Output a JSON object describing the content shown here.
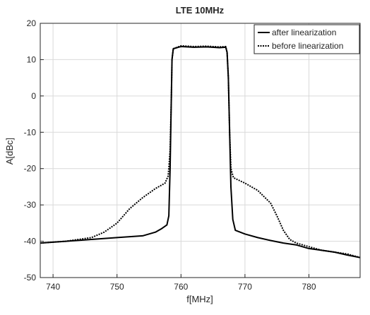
{
  "chart_data": {
    "type": "line",
    "title": "LTE 10MHz",
    "xlabel": "f[MHz]",
    "ylabel": "A[dBc]",
    "xlim": [
      738,
      788
    ],
    "ylim": [
      -50,
      20
    ],
    "xticks": [
      740,
      750,
      760,
      770,
      780
    ],
    "yticks": [
      20,
      10,
      0,
      -10,
      -20,
      -30,
      -40,
      -50
    ],
    "grid": true,
    "legend": {
      "placement": "top-right"
    },
    "series": [
      {
        "name": "after linearization",
        "style": "solid",
        "color": "#000000",
        "points": [
          [
            738,
            -40.5
          ],
          [
            742,
            -40.0
          ],
          [
            746,
            -39.5
          ],
          [
            750,
            -39.0
          ],
          [
            754,
            -38.5
          ],
          [
            756,
            -37.5
          ],
          [
            757,
            -36.5
          ],
          [
            757.8,
            -35.5
          ],
          [
            758.1,
            -33.0
          ],
          [
            758.3,
            -20.0
          ],
          [
            758.5,
            0.0
          ],
          [
            758.6,
            10.0
          ],
          [
            758.8,
            13.0
          ],
          [
            760,
            13.6
          ],
          [
            762,
            13.4
          ],
          [
            764,
            13.5
          ],
          [
            766,
            13.3
          ],
          [
            767,
            13.4
          ],
          [
            767.2,
            12.0
          ],
          [
            767.4,
            5.0
          ],
          [
            767.6,
            -10.0
          ],
          [
            767.8,
            -25.0
          ],
          [
            768.1,
            -34.0
          ],
          [
            768.5,
            -37.0
          ],
          [
            770,
            -38.0
          ],
          [
            772,
            -39.0
          ],
          [
            774,
            -39.8
          ],
          [
            776,
            -40.5
          ],
          [
            778,
            -41.0
          ],
          [
            780,
            -42.0
          ],
          [
            782,
            -42.5
          ],
          [
            784,
            -43.0
          ],
          [
            786,
            -43.8
          ],
          [
            788,
            -44.5
          ]
        ]
      },
      {
        "name": "before linearization",
        "style": "dotted",
        "color": "#000000",
        "points": [
          [
            738,
            -40.5
          ],
          [
            742,
            -40.0
          ],
          [
            746,
            -39.0
          ],
          [
            748,
            -37.5
          ],
          [
            750,
            -35.0
          ],
          [
            752,
            -31.0
          ],
          [
            754,
            -28.0
          ],
          [
            756,
            -25.5
          ],
          [
            757.5,
            -24.0
          ],
          [
            758.0,
            -22.0
          ],
          [
            758.3,
            -15.0
          ],
          [
            758.5,
            0.0
          ],
          [
            758.6,
            10.0
          ],
          [
            758.8,
            13.0
          ],
          [
            760,
            13.8
          ],
          [
            762,
            13.6
          ],
          [
            764,
            13.7
          ],
          [
            766,
            13.5
          ],
          [
            767,
            13.6
          ],
          [
            767.2,
            12.0
          ],
          [
            767.4,
            5.0
          ],
          [
            767.6,
            -10.0
          ],
          [
            767.8,
            -20.0
          ],
          [
            768.2,
            -22.5
          ],
          [
            770,
            -24.0
          ],
          [
            772,
            -26.0
          ],
          [
            774,
            -29.5
          ],
          [
            775,
            -33.0
          ],
          [
            776,
            -37.0
          ],
          [
            777,
            -39.5
          ],
          [
            778,
            -40.5
          ],
          [
            780,
            -41.5
          ],
          [
            782,
            -42.5
          ],
          [
            784,
            -43.0
          ],
          [
            786,
            -43.5
          ],
          [
            788,
            -44.5
          ]
        ]
      }
    ]
  }
}
